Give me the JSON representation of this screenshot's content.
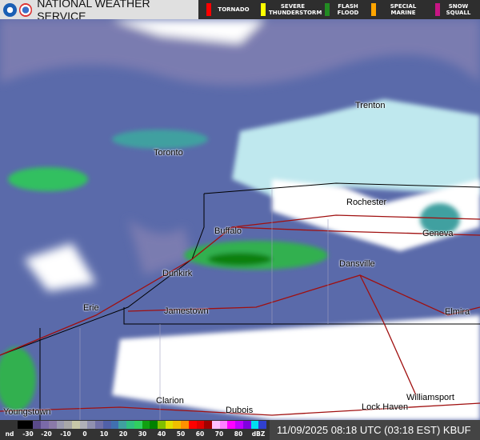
{
  "header": {
    "title": "NATIONAL WEATHER SERVICE",
    "warnings": [
      {
        "label": "TORNADO",
        "color": "#ff0000"
      },
      {
        "label": "SEVERE THUNDERSTORM",
        "color": "#ffff00"
      },
      {
        "label": "FLASH FLOOD",
        "color": "#228b22"
      },
      {
        "label": "SPECIAL MARINE",
        "color": "#ffa500"
      },
      {
        "label": "SNOW SQUALL",
        "color": "#c71585"
      }
    ]
  },
  "cities": [
    {
      "name": "Trenton"
    },
    {
      "name": "Toronto"
    },
    {
      "name": "Rochester"
    },
    {
      "name": "Buffalo"
    },
    {
      "name": "Geneva"
    },
    {
      "name": "Dansville"
    },
    {
      "name": "Dunkirk"
    },
    {
      "name": "Erie"
    },
    {
      "name": "Jamestown"
    },
    {
      "name": "Elmira"
    },
    {
      "name": "Clarion"
    },
    {
      "name": "Dubois"
    },
    {
      "name": "Williamsport"
    },
    {
      "name": "Lock Haven"
    },
    {
      "name": "Youngstown"
    }
  ],
  "legend": {
    "labels": [
      "nd",
      "-30",
      "-20",
      "-10",
      "0",
      "10",
      "20",
      "30",
      "40",
      "50",
      "60",
      "70",
      "80",
      "dBZ"
    ],
    "colors": [
      "#000000",
      "#000000",
      "#5a4a8a",
      "#7a6aa8",
      "#8a7aa8",
      "#9a9ab0",
      "#a8a8a8",
      "#c8c8a8",
      "#b0b0b8",
      "#9090b0",
      "#7070a8",
      "#5060a8",
      "#4070b0",
      "#40a0a0",
      "#30c080",
      "#30d060",
      "#10a010",
      "#008000",
      "#80c000",
      "#e0e000",
      "#f0c000",
      "#ff9000",
      "#ff0000",
      "#e00000",
      "#a00000",
      "#ffc0ff",
      "#ff80ff",
      "#ff00ff",
      "#c000ff",
      "#8000e0",
      "#00e0f0",
      "#3040d0"
    ]
  },
  "timestamp": "11/09/2025 08:18 UTC (03:18 EST)",
  "station": "KBUF"
}
